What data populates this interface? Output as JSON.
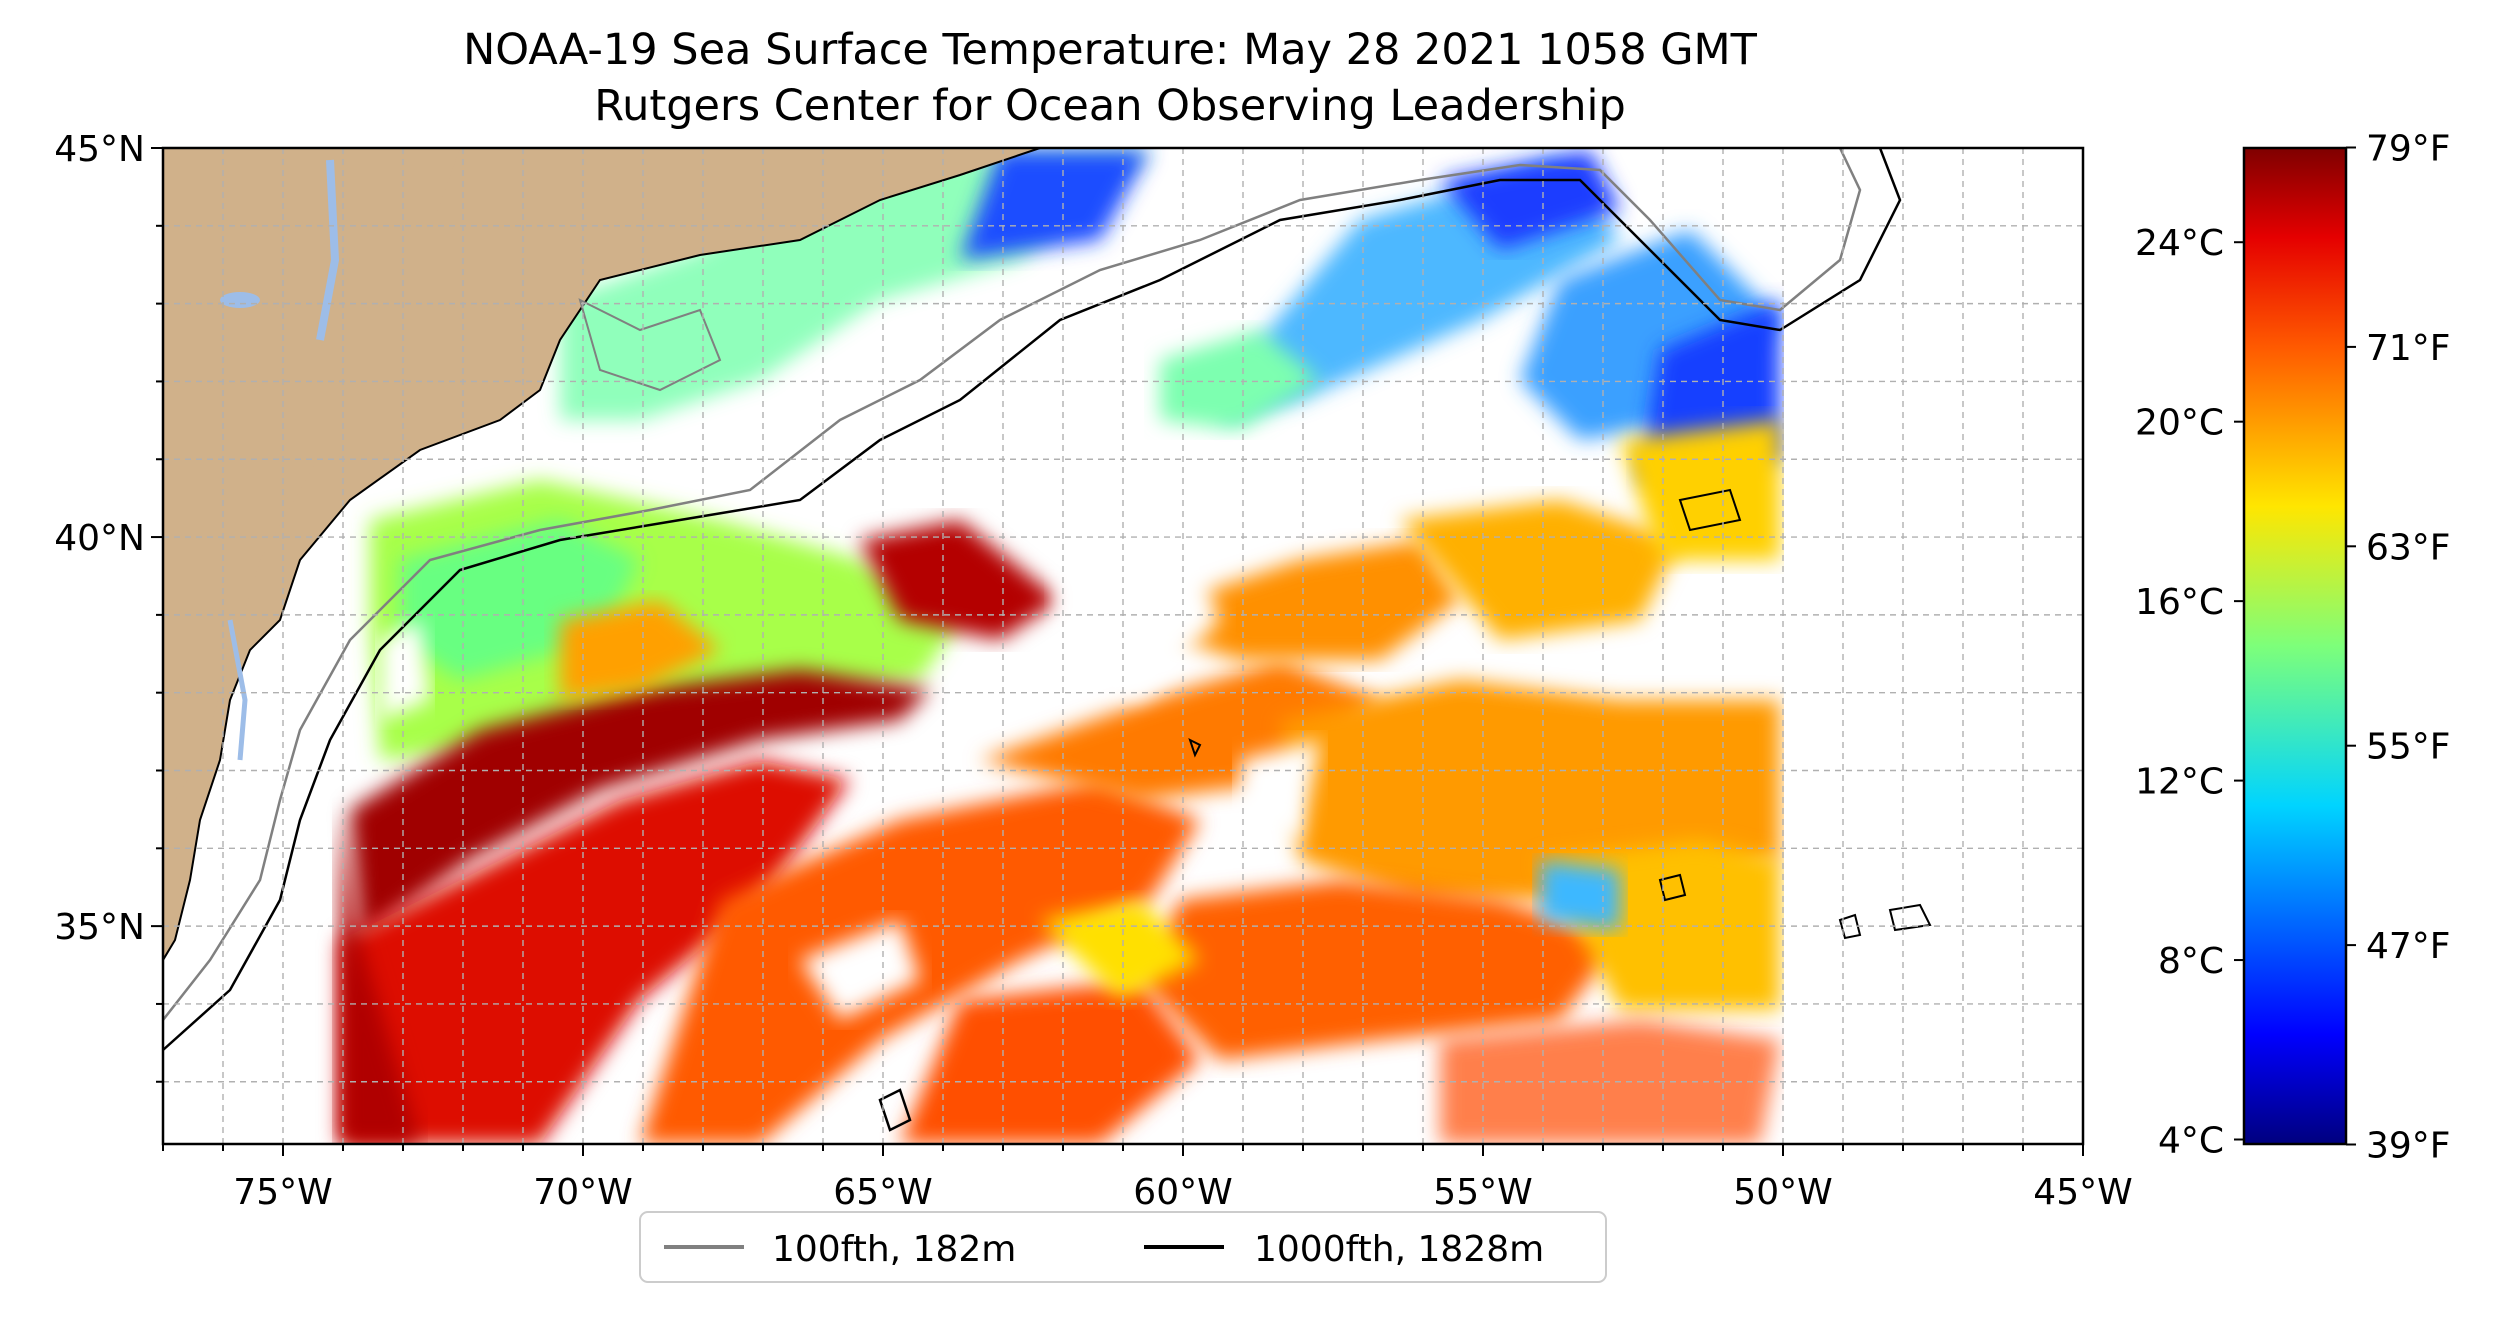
{
  "title": {
    "line1": "NOAA-19 Sea Surface Temperature: May 28 2021 1058 GMT",
    "line2": "Rutgers Center for Ocean Observing Leadership"
  },
  "map": {
    "lon_range": [
      -77,
      -45
    ],
    "lat_range": [
      32.2,
      45
    ],
    "lon_ticks": [
      {
        "value": -75,
        "label": "75°W"
      },
      {
        "value": -70,
        "label": "70°W"
      },
      {
        "value": -65,
        "label": "65°W"
      },
      {
        "value": -60,
        "label": "60°W"
      },
      {
        "value": -55,
        "label": "55°W"
      },
      {
        "value": -50,
        "label": "50°W"
      },
      {
        "value": -45,
        "label": "45°W"
      }
    ],
    "lat_ticks": [
      {
        "value": 45,
        "label": "45°N"
      },
      {
        "value": 40,
        "label": "40°N"
      },
      {
        "value": 35,
        "label": "35°N"
      }
    ],
    "gridlines": "dashed",
    "land_color": "#d0b18a",
    "lake_color": "#9dbde8"
  },
  "colorbar": {
    "colormap": "jet",
    "celsius_range": [
      3.9,
      26.1
    ],
    "celsius_ticks": [
      {
        "value": 4,
        "label": "4°C"
      },
      {
        "value": 8,
        "label": "8°C"
      },
      {
        "value": 12,
        "label": "12°C"
      },
      {
        "value": 16,
        "label": "16°C"
      },
      {
        "value": 20,
        "label": "20°C"
      },
      {
        "value": 24,
        "label": "24°C"
      }
    ],
    "fahrenheit_ticks": [
      {
        "value": 39,
        "label": "39°F"
      },
      {
        "value": 47,
        "label": "47°F"
      },
      {
        "value": 55,
        "label": "55°F"
      },
      {
        "value": 63,
        "label": "63°F"
      },
      {
        "value": 71,
        "label": "71°F"
      },
      {
        "value": 79,
        "label": "79°F"
      }
    ]
  },
  "legend": {
    "placement": "bottom-center",
    "entries": [
      {
        "label": "100fth, 182m",
        "color": "#808080"
      },
      {
        "label": "1000fth, 1828m",
        "color": "#000000"
      }
    ]
  }
}
